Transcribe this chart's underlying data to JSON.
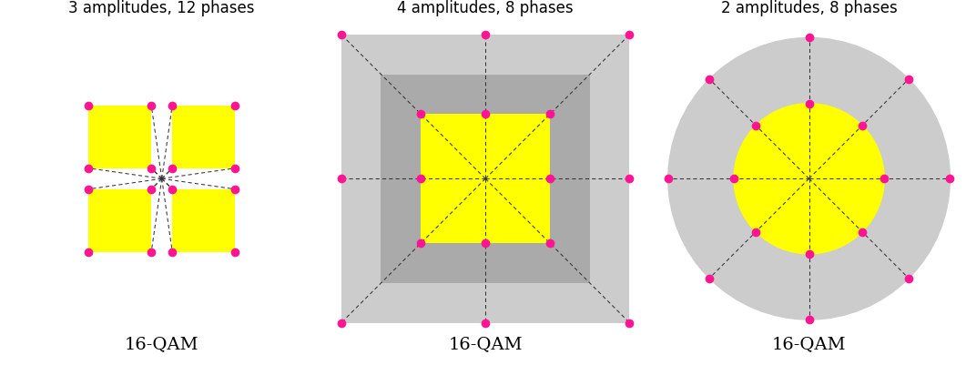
{
  "title1": "3 amplitudes, 12 phases",
  "title2": "4 amplitudes, 8 phases",
  "title3": "2 amplitudes, 8 phases",
  "label": "16-QAM",
  "dot_color": "#FF1493",
  "yellow_color": "#FFFF00",
  "bg_gray_light": "#CCCCCC",
  "bg_gray_med": "#AAAAAA",
  "line_color": "#333333",
  "title_fontsize": 12,
  "label_fontsize": 14,
  "fig_bg": "#FFFFFF"
}
